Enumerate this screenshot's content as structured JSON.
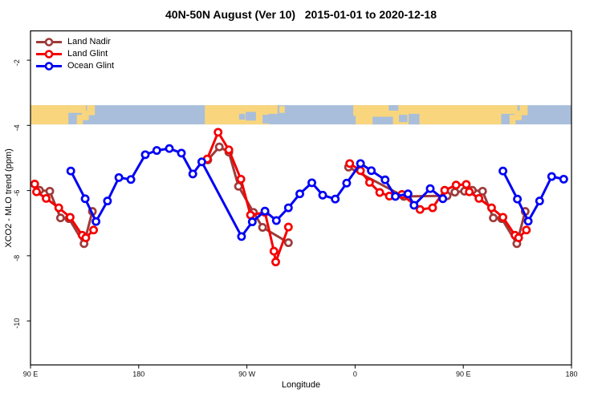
{
  "title": "40N-50N August (Ver 10)   2015-01-01 to 2020-12-18",
  "legend": {
    "items": [
      {
        "label": "Land Nadir",
        "color": "#9e3b3b"
      },
      {
        "label": "Land Glint",
        "color": "#f50000"
      },
      {
        "label": "Ocean Glint",
        "color": "#0000f5"
      }
    ]
  },
  "axes": {
    "x": {
      "label": "Longitude"
    },
    "y": {
      "label": "XCO2 - MLO trend (ppm)"
    }
  },
  "chart_data": {
    "type": "line",
    "title": "40N-50N August (Ver 10)   2015-01-01 to 2020-12-18",
    "xlabel": "Longitude",
    "ylabel": "XCO2 - MLO trend (ppm)",
    "xlim": [
      90,
      540
    ],
    "ylim": [
      -11.35,
      -1.1
    ],
    "x_ticks": [
      {
        "value": 90,
        "label": "90 E"
      },
      {
        "value": 180,
        "label": "180"
      },
      {
        "value": 270,
        "label": "90 W"
      },
      {
        "value": 360,
        "label": "0"
      },
      {
        "value": 450,
        "label": "90 E"
      },
      {
        "value": 540,
        "label": "180"
      }
    ],
    "y_ticks": [
      -2,
      -4,
      -6,
      -8,
      -10
    ],
    "grid": false,
    "legend_position": "top-left",
    "series": [
      {
        "name": "Land Nadir",
        "color": "#9e3b3b",
        "segments": [
          [
            [
              97.5,
              -5.99
            ],
            [
              106,
              -6.02
            ],
            [
              115,
              -6.84
            ],
            [
              122,
              -6.86
            ],
            [
              134.5,
              -7.63
            ],
            [
              141.5,
              -6.64
            ]
          ],
          [
            [
              237.5,
              -5.06
            ],
            [
              247,
              -4.66
            ],
            [
              255,
              -4.82
            ],
            [
              263,
              -5.87
            ],
            [
              275.5,
              -6.67
            ],
            [
              283,
              -7.13
            ],
            [
              304.5,
              -7.6
            ]
          ],
          [
            [
              354.5,
              -5.28
            ],
            [
              400.5,
              -6.18
            ],
            [
              436.5,
              -6.16
            ],
            [
              443,
              -6.05
            ],
            [
              451,
              -6.02
            ],
            [
              457.5,
              -5.99
            ],
            [
              466,
              -6.02
            ],
            [
              475,
              -6.84
            ],
            [
              482,
              -6.86
            ],
            [
              494.5,
              -7.63
            ],
            [
              501.5,
              -6.64
            ]
          ]
        ]
      },
      {
        "name": "Land Glint",
        "color": "#f50000",
        "segments": [
          [
            [
              93.5,
              -5.8
            ],
            [
              95,
              -6.04
            ],
            [
              103,
              -6.24
            ],
            [
              113.5,
              -6.53
            ],
            [
              123,
              -6.82
            ],
            [
              133,
              -7.37
            ],
            [
              136,
              -7.45
            ],
            [
              142.5,
              -7.21
            ]
          ],
          [
            [
              237,
              -5.03
            ],
            [
              246,
              -4.21
            ],
            [
              255,
              -4.75
            ],
            [
              265,
              -5.65
            ],
            [
              273,
              -6.75
            ],
            [
              285,
              -6.67
            ],
            [
              292.5,
              -7.86
            ],
            [
              294,
              -8.19
            ],
            [
              304.5,
              -7.12
            ]
          ],
          [
            [
              355.5,
              -5.17
            ],
            [
              364.5,
              -5.39
            ],
            [
              372,
              -5.75
            ],
            [
              380.5,
              -6.06
            ],
            [
              388.5,
              -6.17
            ],
            [
              399,
              -6.12
            ],
            [
              414,
              -6.58
            ],
            [
              424.5,
              -6.53
            ],
            [
              434.5,
              -5.99
            ],
            [
              444,
              -5.83
            ],
            [
              452.5,
              -5.81
            ],
            [
              455,
              -6.04
            ],
            [
              463,
              -6.24
            ],
            [
              473.5,
              -6.53
            ],
            [
              483,
              -6.82
            ],
            [
              493,
              -7.37
            ],
            [
              496,
              -7.45
            ],
            [
              502.5,
              -7.21
            ]
          ]
        ]
      },
      {
        "name": "Ocean Glint",
        "color": "#0000f5",
        "segments": [
          [
            [
              123.5,
              -5.4
            ],
            [
              135.5,
              -6.25
            ],
            [
              144.5,
              -6.95
            ],
            [
              154,
              -6.32
            ],
            [
              163.5,
              -5.6
            ],
            [
              173.5,
              -5.66
            ],
            [
              185.5,
              -4.9
            ],
            [
              195,
              -4.77
            ],
            [
              205.5,
              -4.71
            ],
            [
              215.5,
              -4.85
            ],
            [
              225,
              -5.49
            ],
            [
              232.5,
              -5.12
            ],
            [
              265.5,
              -7.41
            ],
            [
              274.5,
              -6.96
            ],
            [
              285,
              -6.63
            ],
            [
              294.5,
              -6.92
            ],
            [
              304.5,
              -6.53
            ],
            [
              314,
              -6.1
            ],
            [
              324,
              -5.76
            ],
            [
              333,
              -6.14
            ],
            [
              343.5,
              -6.26
            ],
            [
              353,
              -5.77
            ],
            [
              364.5,
              -5.17
            ],
            [
              373.5,
              -5.39
            ],
            [
              385,
              -5.67
            ],
            [
              393.5,
              -6.18
            ],
            [
              404,
              -6.1
            ],
            [
              409,
              -6.45
            ],
            [
              422.5,
              -5.94
            ],
            [
              433,
              -6.25
            ]
          ],
          [
            [
              483,
              -5.4
            ],
            [
              495,
              -6.26
            ],
            [
              504,
              -6.94
            ],
            [
              513.5,
              -6.32
            ],
            [
              523.5,
              -5.57
            ],
            [
              533.5,
              -5.65
            ]
          ]
        ]
      }
    ],
    "map_band": {
      "y_range": [
        -3.38,
        -3.97
      ],
      "sea_color": "#a9bedb",
      "land_color": "#f9d67d",
      "patches": [
        {
          "kind": "land",
          "lon": [
            90,
            121.5
          ],
          "f": [
            0,
            1
          ]
        },
        {
          "kind": "land",
          "lon": [
            121.5,
            136
          ],
          "f": [
            0,
            0.4
          ]
        },
        {
          "kind": "land",
          "lon": [
            128.5,
            133.5
          ],
          "f": [
            0.5,
            1
          ]
        },
        {
          "kind": "land",
          "lon": [
            132.5,
            138.5
          ],
          "f": [
            0.28,
            0.78
          ]
        },
        {
          "kind": "land",
          "lon": [
            137,
            143.5
          ],
          "f": [
            0,
            0.52
          ]
        },
        {
          "kind": "land",
          "lon": [
            235,
            288
          ],
          "f": [
            0,
            1
          ]
        },
        {
          "kind": "land",
          "lon": [
            288,
            295.5
          ],
          "f": [
            0,
            0.45
          ]
        },
        {
          "kind": "land",
          "lon": [
            297,
            301.5
          ],
          "f": [
            0.05,
            0.4
          ]
        },
        {
          "kind": "land",
          "lon": [
            358.5,
            481.5
          ],
          "f": [
            0,
            1
          ]
        },
        {
          "kind": "land",
          "lon": [
            481.5,
            495
          ],
          "f": [
            0,
            0.45
          ]
        },
        {
          "kind": "land",
          "lon": [
            488.5,
            493.5
          ],
          "f": [
            0.5,
            1
          ]
        },
        {
          "kind": "land",
          "lon": [
            492.5,
            498.5
          ],
          "f": [
            0.28,
            0.78
          ]
        },
        {
          "kind": "land",
          "lon": [
            497,
            503.5
          ],
          "f": [
            0,
            0.52
          ]
        },
        {
          "kind": "sea",
          "lon": [
            263.5,
            268.5
          ],
          "f": [
            0.45,
            0.75
          ]
        },
        {
          "kind": "sea",
          "lon": [
            269,
            277.5
          ],
          "f": [
            0.35,
            0.8
          ]
        },
        {
          "kind": "sea",
          "lon": [
            283,
            290
          ],
          "f": [
            0.5,
            0.95
          ]
        },
        {
          "kind": "sea",
          "lon": [
            357,
            360.5
          ],
          "f": [
            0.55,
            1
          ]
        },
        {
          "kind": "sea",
          "lon": [
            374.5,
            391.5
          ],
          "f": [
            0.6,
            1
          ]
        },
        {
          "kind": "sea",
          "lon": [
            388,
            396
          ],
          "f": [
            0,
            0.28
          ]
        },
        {
          "kind": "sea",
          "lon": [
            396.5,
            403.5
          ],
          "f": [
            0.5,
            0.88
          ]
        },
        {
          "kind": "sea",
          "lon": [
            404.5,
            413.5
          ],
          "f": [
            0.45,
            1
          ]
        }
      ]
    }
  }
}
